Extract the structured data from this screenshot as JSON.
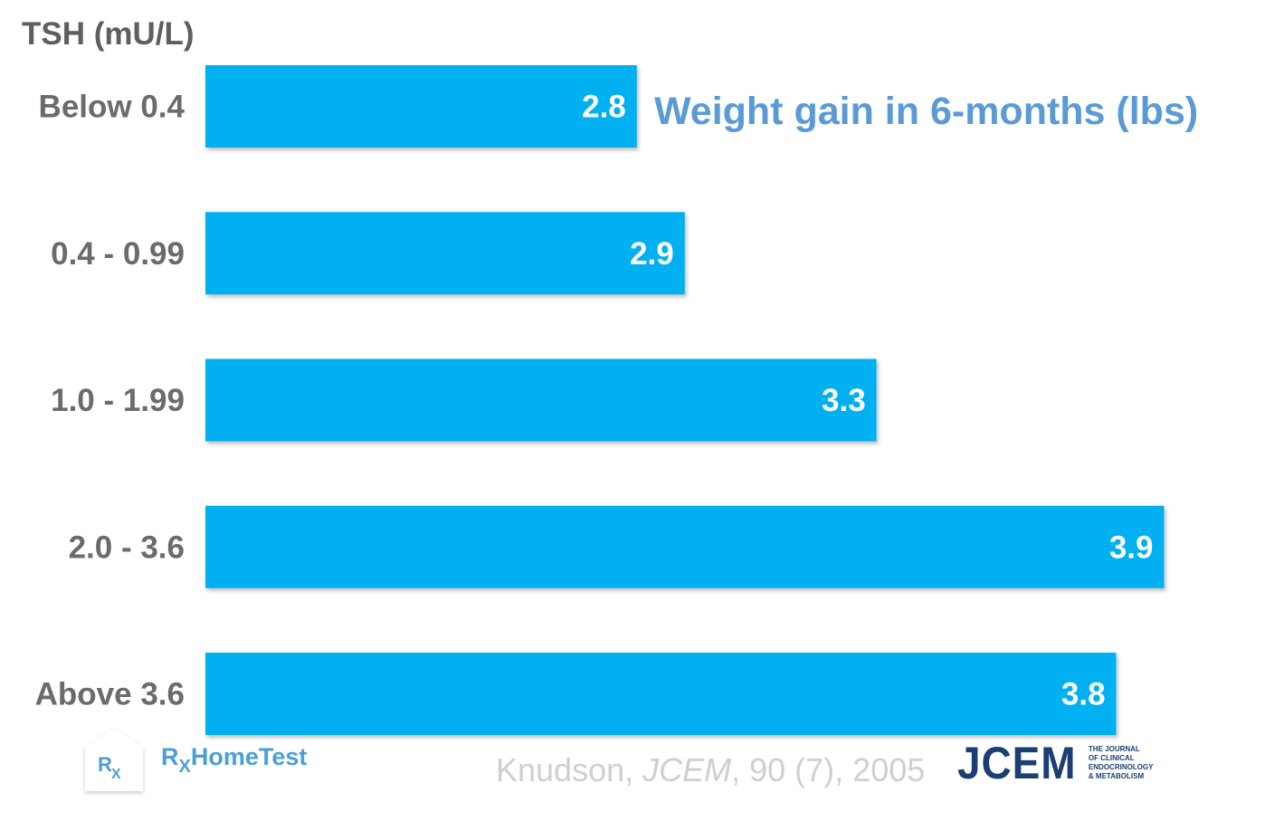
{
  "chart_data": {
    "type": "bar",
    "orientation": "horizontal",
    "title": "",
    "legend_title": "Weight gain in 6-months (lbs)",
    "ylabel": "TSH (mU/L)",
    "xlabel": "",
    "categories": [
      "Below 0.4",
      "0.4 - 0.99",
      "1.0 - 1.99",
      "2.0 - 3.6",
      "Above 3.6"
    ],
    "values": [
      2.8,
      2.9,
      3.3,
      3.9,
      3.8
    ],
    "data_labels": [
      "2.8",
      "2.9",
      "3.3",
      "3.9",
      "3.8"
    ],
    "xlim": [
      1.9,
      3.95
    ],
    "grid": false,
    "bar_color": "#00b0f0",
    "legend_position": "top-right"
  },
  "citation": {
    "author": "Knudson, ",
    "journal": "JCEM",
    "rest": ", 90 (7), 2005"
  },
  "jcem_logo": {
    "mark": "JCEM",
    "lines": [
      "THE JOURNAL",
      "OF CLINICAL",
      "ENDOCRINOLOGY",
      "& METABOLISM"
    ]
  },
  "rx_logo": {
    "badge_main": "R",
    "badge_sub": "X",
    "text_main": "R",
    "text_sub": "X",
    "text_rest": "HomeTest"
  }
}
